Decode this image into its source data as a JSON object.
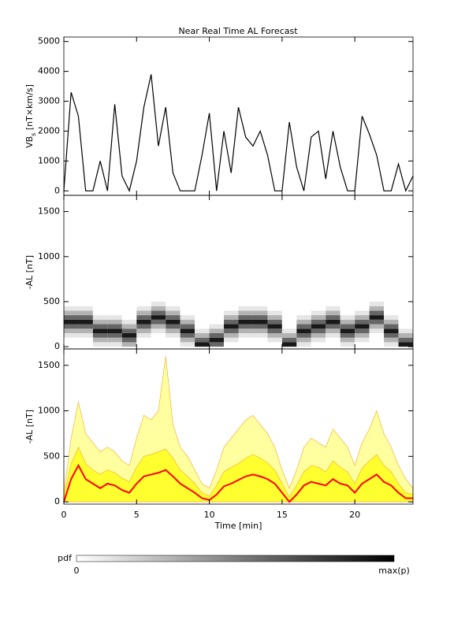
{
  "chart_data": [
    {
      "type": "line",
      "title": "Near Real Time AL Forecast",
      "ylabel_parts": [
        "VB",
        "s",
        " [nT×km/s]"
      ],
      "x": [
        0,
        0.5,
        1,
        1.5,
        2,
        2.5,
        3,
        3.5,
        4,
        4.5,
        5,
        5.5,
        6,
        6.5,
        7,
        7.5,
        8,
        8.5,
        9,
        9.5,
        10,
        10.5,
        11,
        11.5,
        12,
        12.5,
        13,
        13.5,
        14,
        14.5,
        15,
        15.5,
        16,
        16.5,
        17,
        17.5,
        18,
        18.5,
        19,
        19.5,
        20,
        20.5,
        21,
        21.5,
        22,
        22.5,
        23,
        23.5,
        24
      ],
      "values": [
        0,
        3300,
        2500,
        0,
        0,
        1000,
        0,
        2900,
        500,
        0,
        1000,
        2800,
        3900,
        1500,
        2800,
        600,
        0,
        0,
        0,
        1200,
        2600,
        0,
        2000,
        600,
        2800,
        1800,
        1500,
        2000,
        1200,
        0,
        0,
        2300,
        800,
        0,
        1800,
        2000,
        400,
        2000,
        800,
        0,
        0,
        2500,
        1900,
        1200,
        0,
        0,
        900,
        0,
        500
      ],
      "color": "#000000",
      "xlim": [
        0,
        24
      ],
      "ylim": [
        -150,
        5150
      ],
      "xticks": [
        0,
        5,
        10,
        15,
        20
      ],
      "yticks": [
        0,
        1000,
        2000,
        3000,
        4000,
        5000
      ]
    },
    {
      "type": "heatmap",
      "ylabel": "-AL [nT]",
      "xbins": [
        0,
        1,
        2,
        3,
        4,
        5,
        6,
        7,
        8,
        9,
        10,
        11,
        12,
        13,
        14,
        15,
        16,
        17,
        18,
        19,
        20,
        21,
        22,
        23,
        24
      ],
      "ybins": [
        0,
        50,
        100,
        150,
        200,
        250,
        300,
        350,
        400,
        450,
        500
      ],
      "values": [
        [
          0,
          0,
          0.1,
          0.3,
          0.6,
          0.9,
          0.6,
          0.3,
          0.1,
          0
        ],
        [
          0,
          0,
          0.1,
          0.3,
          0.6,
          0.9,
          0.6,
          0.3,
          0.1,
          0
        ],
        [
          0.1,
          0.3,
          0.6,
          0.9,
          0.6,
          0.3,
          0.1,
          0,
          0,
          0
        ],
        [
          0.1,
          0.3,
          0.6,
          0.9,
          0.6,
          0.3,
          0.1,
          0,
          0,
          0
        ],
        [
          0.3,
          0.6,
          0.9,
          0.6,
          0.3,
          0.1,
          0,
          0,
          0,
          0
        ],
        [
          0,
          0,
          0.1,
          0.3,
          0.6,
          0.9,
          0.6,
          0.3,
          0.1,
          0
        ],
        [
          0,
          0,
          0,
          0.1,
          0.3,
          0.6,
          0.9,
          0.6,
          0.3,
          0.1
        ],
        [
          0,
          0,
          0.1,
          0.3,
          0.6,
          0.9,
          0.6,
          0.3,
          0.1,
          0
        ],
        [
          0.1,
          0.3,
          0.6,
          0.9,
          0.6,
          0.3,
          0.1,
          0,
          0,
          0
        ],
        [
          0.9,
          0.6,
          0.3,
          0.1,
          0,
          0,
          0,
          0,
          0,
          0
        ],
        [
          0.6,
          0.9,
          0.6,
          0.3,
          0.1,
          0,
          0,
          0,
          0,
          0
        ],
        [
          0,
          0.1,
          0.3,
          0.6,
          0.9,
          0.6,
          0.3,
          0.1,
          0,
          0
        ],
        [
          0,
          0,
          0.1,
          0.3,
          0.6,
          0.9,
          0.6,
          0.3,
          0.1,
          0
        ],
        [
          0,
          0,
          0.1,
          0.3,
          0.6,
          0.9,
          0.6,
          0.3,
          0.1,
          0
        ],
        [
          0,
          0.1,
          0.3,
          0.6,
          0.9,
          0.6,
          0.3,
          0.1,
          0,
          0
        ],
        [
          0.9,
          0.6,
          0.3,
          0.1,
          0,
          0,
          0,
          0,
          0,
          0
        ],
        [
          0.1,
          0.3,
          0.6,
          0.9,
          0.6,
          0.3,
          0.1,
          0,
          0,
          0
        ],
        [
          0,
          0.1,
          0.3,
          0.6,
          0.9,
          0.6,
          0.3,
          0.1,
          0,
          0
        ],
        [
          0,
          0,
          0.1,
          0.3,
          0.6,
          0.9,
          0.6,
          0.3,
          0.1,
          0
        ],
        [
          0.1,
          0.3,
          0.6,
          0.9,
          0.6,
          0.3,
          0.1,
          0,
          0,
          0
        ],
        [
          0,
          0.1,
          0.3,
          0.6,
          0.9,
          0.6,
          0.3,
          0.1,
          0,
          0
        ],
        [
          0,
          0,
          0,
          0.1,
          0.3,
          0.6,
          0.9,
          0.6,
          0.3,
          0.1
        ],
        [
          0.1,
          0.3,
          0.6,
          0.9,
          0.6,
          0.3,
          0.1,
          0,
          0,
          0
        ],
        [
          0.9,
          0.6,
          0.3,
          0.1,
          0,
          0,
          0,
          0,
          0,
          0
        ]
      ],
      "xlim": [
        0,
        24
      ],
      "ylim": [
        -25,
        1680
      ],
      "xticks": [
        0,
        5,
        10,
        15,
        20
      ],
      "yticks": [
        0,
        500,
        1000,
        1500
      ]
    },
    {
      "type": "band",
      "ylabel": "-AL [nT]",
      "xlabel": "Time [min]",
      "x": [
        0,
        0.5,
        1,
        1.5,
        2,
        2.5,
        3,
        3.5,
        4,
        4.5,
        5,
        5.5,
        6,
        6.5,
        7,
        7.5,
        8,
        8.5,
        9,
        9.5,
        10,
        10.5,
        11,
        11.5,
        12,
        12.5,
        13,
        13.5,
        14,
        14.5,
        15,
        15.5,
        16,
        16.5,
        17,
        17.5,
        18,
        18.5,
        19,
        19.5,
        20,
        20.5,
        21,
        21.5,
        22,
        22.5,
        23,
        23.5,
        24
      ],
      "series": [
        {
          "color": "#ffffa0",
          "values": [
            100,
            700,
            1100,
            750,
            650,
            550,
            600,
            550,
            450,
            400,
            700,
            950,
            900,
            1000,
            1600,
            850,
            600,
            500,
            350,
            200,
            150,
            350,
            600,
            700,
            800,
            900,
            950,
            850,
            750,
            600,
            350,
            150,
            350,
            600,
            700,
            650,
            600,
            800,
            700,
            600,
            400,
            650,
            800,
            1000,
            750,
            600,
            400,
            250,
            150
          ]
        },
        {
          "color": "#ffff30",
          "values": [
            50,
            420,
            600,
            420,
            350,
            300,
            350,
            320,
            260,
            220,
            380,
            500,
            520,
            550,
            580,
            480,
            350,
            280,
            200,
            100,
            60,
            180,
            330,
            380,
            420,
            480,
            520,
            480,
            430,
            350,
            200,
            50,
            180,
            330,
            400,
            380,
            330,
            450,
            380,
            330,
            200,
            370,
            450,
            520,
            400,
            330,
            200,
            100,
            80
          ]
        },
        {
          "color": "#ff0000",
          "values": [
            0,
            250,
            400,
            250,
            200,
            150,
            200,
            180,
            130,
            100,
            200,
            280,
            300,
            320,
            350,
            280,
            200,
            150,
            100,
            40,
            20,
            80,
            170,
            200,
            240,
            280,
            300,
            280,
            250,
            200,
            100,
            0,
            80,
            180,
            220,
            200,
            180,
            250,
            200,
            180,
            100,
            200,
            250,
            300,
            220,
            180,
            100,
            40,
            40
          ]
        }
      ],
      "xlim": [
        0,
        24
      ],
      "ylim": [
        -25,
        1680
      ],
      "xticks": [
        0,
        5,
        10,
        15,
        20
      ],
      "yticks": [
        0,
        500,
        1000,
        1500
      ]
    }
  ],
  "colorbar": {
    "label": "pdf",
    "min_label": "0",
    "max_label": "max(p)"
  }
}
